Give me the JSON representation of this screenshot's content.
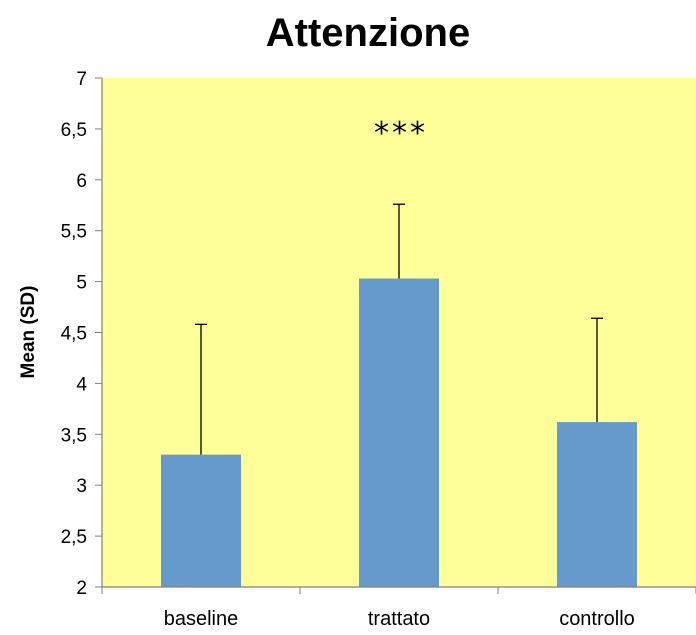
{
  "chart_data": {
    "type": "bar",
    "title": "Attenzione",
    "xlabel": "",
    "ylabel": "Mean (SD)",
    "categories": [
      "baseline",
      "trattato",
      "controllo"
    ],
    "values": [
      3.3,
      5.03,
      3.62
    ],
    "error_bars": [
      1.28,
      0.73,
      1.02
    ],
    "error_bar_direction": "upper",
    "ylim": [
      2,
      7
    ],
    "yticks": [
      "2",
      "2,5",
      "3",
      "3,5",
      "4",
      "4,5",
      "5",
      "5,5",
      "6",
      "6,5",
      "7"
    ],
    "ytick_values": [
      2,
      2.5,
      3,
      3.5,
      4,
      4.5,
      5,
      5.5,
      6,
      6.5,
      7
    ],
    "grid": false,
    "annotations": [
      {
        "text": "***",
        "category": "trattato",
        "y": 6.5
      }
    ],
    "colors": {
      "bar": "#6699cc",
      "plot_background": "#ffff99",
      "axis": "#808080",
      "error_bar": "#000000"
    }
  }
}
